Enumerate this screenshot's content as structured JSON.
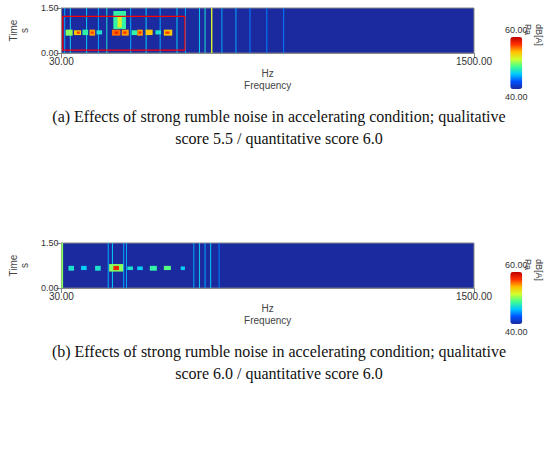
{
  "chart_data": [
    {
      "type": "heatmap",
      "title": "(a) Effects of strong rumble noise in accelerating condition; qualitative score 5.5 / quantitative score 6.0",
      "xlabel": "Frequency",
      "x_unit": "Hz",
      "ylabel": "Time",
      "y_unit": "s",
      "xlim": [
        30,
        1500
      ],
      "xticks": [
        {
          "value": 30,
          "label": "30.00"
        },
        {
          "value": 1500,
          "label": "1500.00"
        }
      ],
      "ylim": [
        0,
        1.5
      ],
      "yticks": [
        {
          "value": 0,
          "label": "0.00"
        },
        {
          "value": 1.5,
          "label": "1.50"
        }
      ],
      "colorbar": {
        "range": [
          40,
          60
        ],
        "ticks": [
          {
            "value": 40,
            "label": "40.00"
          },
          {
            "value": 60,
            "label": "60.00"
          }
        ],
        "label": "dB[A]",
        "unit": "Pa"
      },
      "cells": [
        [
          40,
          43,
          0,
          1.5,
          45
        ],
        [
          60,
          63,
          0,
          1.5,
          46
        ],
        [
          118,
          121,
          0,
          1.5,
          46
        ],
        [
          160,
          163,
          0,
          1.5,
          45
        ],
        [
          190,
          193,
          0,
          1.5,
          47
        ],
        [
          275,
          278,
          0,
          1.5,
          45
        ],
        [
          330,
          333,
          0,
          1.5,
          46
        ],
        [
          380,
          383,
          0,
          1.5,
          45
        ],
        [
          440,
          443,
          0,
          1.5,
          46
        ],
        [
          470,
          473,
          0,
          1.5,
          45
        ],
        [
          520,
          523,
          0,
          1.5,
          46
        ],
        [
          540,
          543,
          0,
          1.5,
          47
        ],
        [
          563,
          568,
          0,
          1.5,
          52
        ],
        [
          600,
          603,
          0,
          1.5,
          45
        ],
        [
          650,
          653,
          0,
          1.5,
          45
        ],
        [
          700,
          703,
          0,
          1.5,
          44
        ],
        [
          760,
          763,
          0,
          1.5,
          44
        ],
        [
          820,
          823,
          0,
          1.5,
          44
        ],
        [
          215,
          260,
          0.8,
          1.4,
          48
        ],
        [
          230,
          245,
          0.85,
          1.2,
          52
        ],
        [
          45,
          70,
          0.58,
          0.78,
          50
        ],
        [
          75,
          100,
          0.6,
          0.76,
          54
        ],
        [
          105,
          125,
          0.6,
          0.78,
          48
        ],
        [
          130,
          150,
          0.58,
          0.78,
          55
        ],
        [
          155,
          175,
          0.62,
          0.76,
          47
        ],
        [
          210,
          240,
          0.58,
          0.78,
          56
        ],
        [
          245,
          270,
          0.58,
          0.78,
          55
        ],
        [
          280,
          300,
          0.6,
          0.76,
          48
        ],
        [
          300,
          320,
          0.58,
          0.78,
          55
        ],
        [
          330,
          355,
          0.6,
          0.78,
          54
        ],
        [
          365,
          385,
          0.62,
          0.76,
          47
        ],
        [
          395,
          425,
          0.58,
          0.78,
          54
        ],
        [
          85,
          95,
          0.64,
          0.72,
          57
        ],
        [
          135,
          145,
          0.64,
          0.72,
          57
        ],
        [
          220,
          232,
          0.64,
          0.72,
          58
        ],
        [
          250,
          262,
          0.64,
          0.72,
          57
        ],
        [
          305,
          315,
          0.64,
          0.72,
          57
        ],
        [
          400,
          415,
          0.64,
          0.72,
          57
        ]
      ],
      "annotations": [
        {
          "type": "rect",
          "xlim": [
            35,
            470
          ],
          "ylim": [
            0.1,
            1.22
          ],
          "color": "#ff0000"
        }
      ]
    },
    {
      "type": "heatmap",
      "title": "(b) Effects of strong rumble noise in accelerating condition; qualitative score 6.0 / quantitative score 6.0",
      "xlabel": "Frequency",
      "x_unit": "Hz",
      "ylabel": "Time",
      "y_unit": "s",
      "xlim": [
        30,
        1500
      ],
      "xticks": [
        {
          "value": 30,
          "label": "30.00"
        },
        {
          "value": 1500,
          "label": "1500.00"
        }
      ],
      "ylim": [
        0,
        1.5
      ],
      "yticks": [
        {
          "value": 0,
          "label": "0.00"
        },
        {
          "value": 1.5,
          "label": "1.50"
        }
      ],
      "colorbar": {
        "range": [
          40,
          60
        ],
        "ticks": [
          {
            "value": 40,
            "label": "40.00"
          },
          {
            "value": 60,
            "label": "60.00"
          }
        ],
        "label": "dB[A]",
        "unit": "Pa"
      },
      "cells": [
        [
          30,
          36,
          0,
          1.5,
          50
        ],
        [
          195,
          198,
          0,
          1.5,
          45
        ],
        [
          210,
          213,
          0,
          1.5,
          46
        ],
        [
          250,
          253,
          0,
          1.5,
          45
        ],
        [
          260,
          263,
          0,
          1.5,
          45
        ],
        [
          500,
          503,
          0,
          1.5,
          45
        ],
        [
          520,
          523,
          0,
          1.5,
          46
        ],
        [
          540,
          543,
          0,
          1.5,
          45
        ],
        [
          560,
          563,
          0,
          1.5,
          46
        ],
        [
          590,
          593,
          0,
          1.5,
          44
        ],
        [
          55,
          75,
          0.58,
          0.74,
          47
        ],
        [
          100,
          120,
          0.6,
          0.74,
          46
        ],
        [
          150,
          170,
          0.58,
          0.74,
          47
        ],
        [
          200,
          250,
          0.55,
          0.8,
          50
        ],
        [
          215,
          235,
          0.6,
          0.74,
          58
        ],
        [
          265,
          285,
          0.6,
          0.72,
          47
        ],
        [
          300,
          320,
          0.6,
          0.72,
          46
        ],
        [
          345,
          370,
          0.58,
          0.74,
          48
        ],
        [
          395,
          420,
          0.6,
          0.74,
          49
        ],
        [
          455,
          470,
          0.6,
          0.72,
          46
        ]
      ],
      "annotations": []
    }
  ]
}
